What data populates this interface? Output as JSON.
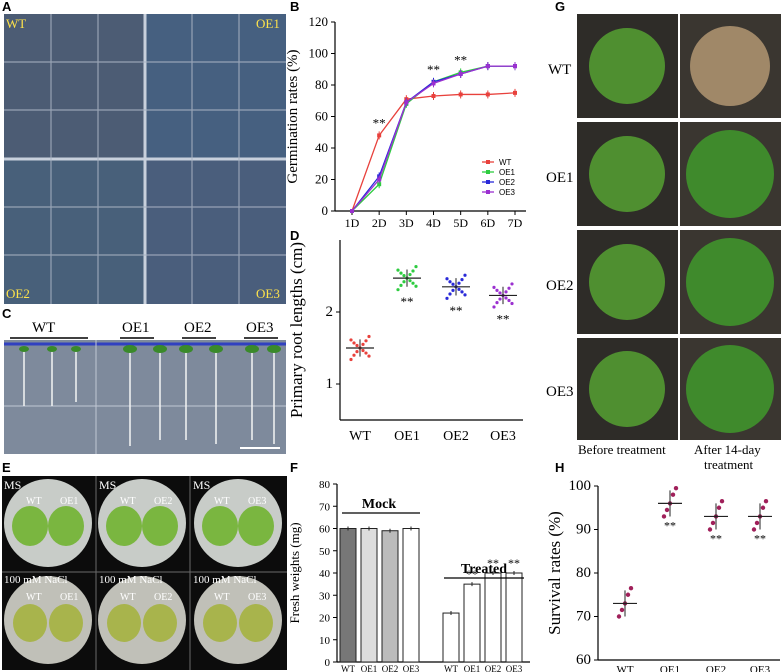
{
  "panels": {
    "A": {
      "letter": "A",
      "labels": [
        "WT",
        "OE1",
        "OE2",
        "OE3"
      ]
    },
    "B": {
      "letter": "B"
    },
    "C": {
      "letter": "C",
      "labels": [
        "WT",
        "OE1",
        "OE2",
        "OE3"
      ]
    },
    "D": {
      "letter": "D"
    },
    "E": {
      "letter": "E",
      "top_label": "MS",
      "bottom_label": "100 mM NaCl",
      "plates": [
        [
          "WT",
          "OE1"
        ],
        [
          "WT",
          "OE2"
        ],
        [
          "WT",
          "OE3"
        ]
      ]
    },
    "F": {
      "letter": "F",
      "mock": "Mock",
      "treated": "Treated"
    },
    "G": {
      "letter": "G",
      "rows": [
        "WT",
        "OE1",
        "OE2",
        "OE3"
      ],
      "col1": "Before treatment",
      "col2_line1": "After 14-day",
      "col2_line2": "treatment"
    },
    "H": {
      "letter": "H"
    }
  },
  "colors": {
    "wt": "#e8413c",
    "oe1": "#2ecc40",
    "oe2": "#2a2ad8",
    "oe3": "#9b30d0"
  },
  "chart_data": [
    {
      "id": "B",
      "type": "line",
      "ylabel": "Germination rates (%)",
      "categories": [
        "1D",
        "2D",
        "3D",
        "4D",
        "5D",
        "6D",
        "7D"
      ],
      "ylim": [
        0,
        120
      ],
      "yticks": [
        0,
        20,
        40,
        60,
        80,
        100,
        120
      ],
      "series": [
        {
          "name": "WT",
          "values": [
            0,
            48,
            71,
            73,
            74,
            74,
            75
          ]
        },
        {
          "name": "OE1",
          "values": [
            0,
            17,
            68,
            82,
            88,
            92,
            92
          ]
        },
        {
          "name": "OE2",
          "values": [
            0,
            22,
            69,
            82,
            87,
            92,
            92
          ]
        },
        {
          "name": "OE3",
          "values": [
            0,
            20,
            69,
            81,
            87,
            92,
            92
          ]
        }
      ],
      "annotations": [
        {
          "x": "2D",
          "text": "**"
        },
        {
          "x": "4D",
          "text": "**"
        },
        {
          "x": "5D",
          "text": "**"
        }
      ]
    },
    {
      "id": "D",
      "type": "scatter",
      "ylabel": "Primary root lengths (cm)",
      "categories": [
        "WT",
        "OE1",
        "OE2",
        "OE3"
      ],
      "ylim": [
        0.5,
        3.0
      ],
      "yticks": [
        1,
        2
      ],
      "means": [
        1.5,
        2.47,
        2.35,
        2.23
      ],
      "sig": [
        "",
        "**",
        "**",
        "**"
      ]
    },
    {
      "id": "F",
      "type": "bar",
      "ylabel": "Fresh weights (mg)",
      "categories": [
        "WT",
        "OE1",
        "OE2",
        "OE3",
        "WT",
        "OE1",
        "OE2",
        "OE3"
      ],
      "values": [
        60,
        60,
        59,
        60,
        22,
        35,
        40,
        40
      ],
      "ylim": [
        0,
        80
      ],
      "yticks": [
        0,
        10,
        20,
        30,
        40,
        50,
        60,
        70,
        80
      ],
      "sig": [
        "",
        "",
        "",
        "",
        "",
        "**",
        "**",
        "**"
      ]
    },
    {
      "id": "H",
      "type": "scatter",
      "ylabel": "Survival rates (%)",
      "categories": [
        "WT",
        "OE1",
        "OE2",
        "OE3"
      ],
      "ylim": [
        60,
        100
      ],
      "yticks": [
        60,
        70,
        80,
        90,
        100
      ],
      "means": [
        73,
        96,
        93,
        93
      ],
      "sig": [
        "",
        "**",
        "**",
        "**"
      ]
    }
  ]
}
